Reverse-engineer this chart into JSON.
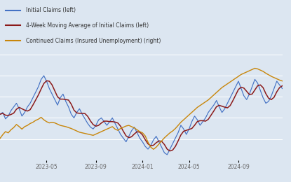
{
  "legend_entries": [
    "Initial Claims (left)",
    "4-Week Moving Average of Initial Claims (left)",
    "Continued Claims (Insured Unemployment) (right)"
  ],
  "legend_colors": [
    "#4472c4",
    "#8b1a1a",
    "#c8860a"
  ],
  "background_color": "#dce6f1",
  "plot_bg_color": "#dce6f1",
  "legend_bg_color": "#d6e4f0",
  "grid_color": "#ffffff",
  "x_tick_labels": [
    "2023-05",
    "2023-09",
    "2024-01",
    "2024-05",
    "2024-09"
  ],
  "x_tick_pos": [
    17,
    35,
    52,
    69,
    87
  ],
  "yleft_range": [
    170,
    285
  ],
  "yright_range": [
    1630,
    1970
  ],
  "n_weeks": 104,
  "initial_claims": [
    220,
    222,
    215,
    218,
    224,
    228,
    232,
    226,
    218,
    222,
    228,
    232,
    238,
    244,
    250,
    258,
    262,
    256,
    248,
    242,
    236,
    230,
    238,
    242,
    234,
    228,
    220,
    216,
    222,
    226,
    220,
    215,
    210,
    206,
    204,
    208,
    214,
    216,
    212,
    208,
    212,
    216,
    210,
    204,
    198,
    194,
    190,
    196,
    202,
    206,
    200,
    194,
    190,
    185,
    182,
    186,
    192,
    196,
    190,
    184,
    178,
    176,
    182,
    188,
    194,
    200,
    208,
    204,
    198,
    204,
    212,
    218,
    214,
    208,
    212,
    216,
    222,
    226,
    230,
    235,
    228,
    222,
    226,
    232,
    238,
    244,
    250,
    256,
    248,
    240,
    236,
    242,
    250,
    258,
    254,
    246,
    238,
    232,
    234,
    240,
    248,
    256,
    252,
    248
  ],
  "continued_claims": [
    1700,
    1712,
    1722,
    1718,
    1728,
    1735,
    1745,
    1738,
    1730,
    1738,
    1742,
    1748,
    1752,
    1758,
    1762,
    1768,
    1760,
    1754,
    1750,
    1752,
    1750,
    1746,
    1742,
    1740,
    1738,
    1735,
    1732,
    1728,
    1724,
    1720,
    1718,
    1716,
    1714,
    1712,
    1710,
    1714,
    1718,
    1722,
    1726,
    1730,
    1734,
    1738,
    1730,
    1726,
    1732,
    1736,
    1740,
    1742,
    1738,
    1734,
    1728,
    1722,
    1718,
    1708,
    1688,
    1672,
    1665,
    1672,
    1682,
    1692,
    1702,
    1710,
    1718,
    1724,
    1732,
    1742,
    1752,
    1760,
    1768,
    1776,
    1784,
    1792,
    1800,
    1806,
    1812,
    1818,
    1824,
    1832,
    1840,
    1848,
    1856,
    1864,
    1870,
    1876,
    1882,
    1888,
    1894,
    1900,
    1906,
    1910,
    1914,
    1918,
    1922,
    1926,
    1924,
    1920,
    1916,
    1910,
    1905,
    1900,
    1896,
    1892,
    1888,
    1885
  ]
}
